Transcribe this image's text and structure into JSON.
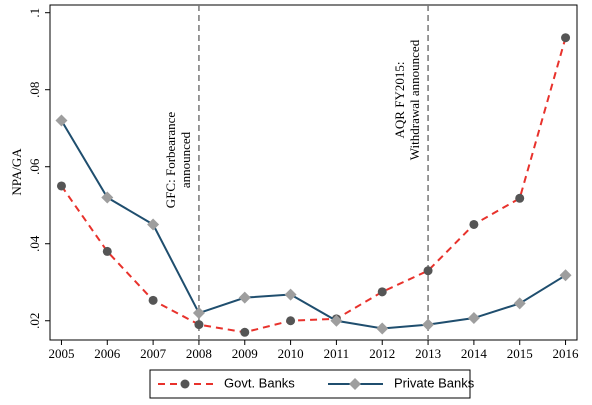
{
  "chart_data": {
    "type": "line",
    "y_label": "NPA/GA",
    "x": [
      2005,
      2006,
      2007,
      2008,
      2009,
      2010,
      2011,
      2012,
      2013,
      2014,
      2015,
      2016
    ],
    "series": [
      {
        "name": "Govt. Banks",
        "color": "#e8322c",
        "marker_color": "#555555",
        "dash": true,
        "marker": "circle",
        "values": [
          0.055,
          0.038,
          0.0253,
          0.019,
          0.017,
          0.02,
          0.0205,
          0.0275,
          0.033,
          0.045,
          0.0518,
          0.0935
        ]
      },
      {
        "name": "Private Banks",
        "color": "#1f4e6e",
        "marker_color": "#9e9e9e",
        "dash": false,
        "marker": "diamond",
        "values": [
          0.072,
          0.052,
          0.045,
          0.022,
          0.026,
          0.0268,
          0.02,
          0.018,
          0.019,
          0.0207,
          0.0245,
          0.0318
        ]
      }
    ],
    "xlim": [
      2004.75,
      2016.25
    ],
    "ylim": [
      0.015,
      0.102
    ],
    "xticks": [
      2005,
      2006,
      2007,
      2008,
      2009,
      2010,
      2011,
      2012,
      2013,
      2014,
      2015,
      2016
    ],
    "yticks": [
      {
        "value": 0.02,
        "label": ".02"
      },
      {
        "value": 0.04,
        "label": ".04"
      },
      {
        "value": 0.06,
        "label": ".06"
      },
      {
        "value": 0.08,
        "label": ".08"
      },
      {
        "value": 0.1,
        "label": ".1"
      }
    ],
    "annotations": [
      {
        "x": 2008,
        "lines": [
          "GFC: Forbearance",
          "announced"
        ]
      },
      {
        "x": 2013,
        "lines": [
          "AQR FY2015:",
          "Withdrawal announced"
        ]
      }
    ],
    "legend": "bottom"
  }
}
